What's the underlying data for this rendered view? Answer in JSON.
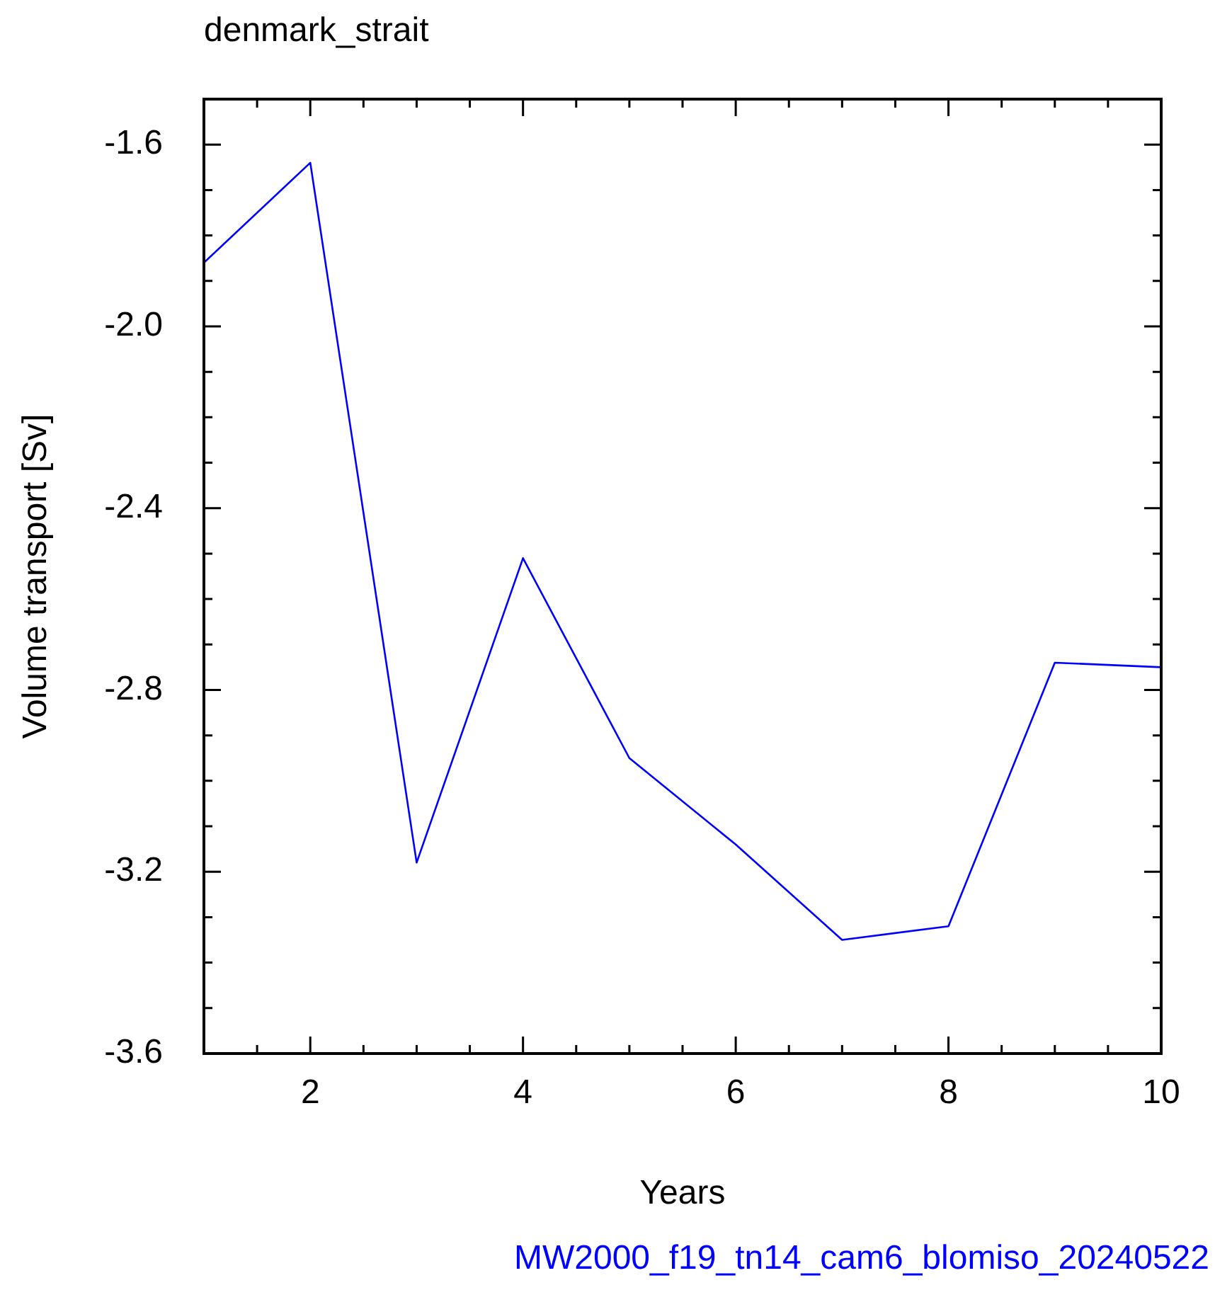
{
  "chart_data": {
    "type": "line",
    "title": "denmark_strait",
    "xlabel": "Years",
    "ylabel": "Volume transport [Sv]",
    "annotations": [
      "MW2000_f19_tn14_cam6_blomiso_20240522"
    ],
    "x": [
      1,
      2,
      3,
      4,
      5,
      6,
      7,
      8,
      9,
      10
    ],
    "series": [
      {
        "color": "#0000ff",
        "values": [
          -1.86,
          -1.64,
          -3.18,
          -2.51,
          -2.95,
          -3.14,
          -3.35,
          -3.32,
          -2.74,
          -2.75
        ]
      }
    ],
    "xlim": [
      1,
      10
    ],
    "xticks": [
      {
        "value": 1,
        "label": null
      },
      {
        "value": 1.5,
        "label": null
      },
      2,
      {
        "value": 2.5,
        "label": null
      },
      {
        "value": 3,
        "label": null
      },
      {
        "value": 3.5,
        "label": null
      },
      4,
      {
        "value": 4.5,
        "label": null
      },
      {
        "value": 5,
        "label": null
      },
      {
        "value": 5.5,
        "label": null
      },
      6,
      {
        "value": 6.5,
        "label": null
      },
      {
        "value": 7,
        "label": null
      },
      {
        "value": 7.5,
        "label": null
      },
      8,
      {
        "value": 8.5,
        "label": null
      },
      {
        "value": 9,
        "label": null
      },
      {
        "value": 9.5,
        "label": null
      },
      10
    ],
    "ylim": [
      -3.6,
      -1.5
    ],
    "yticks": [
      {
        "value": -3.6,
        "label": "-3.6"
      },
      {
        "value": -3.5,
        "label": null
      },
      {
        "value": -3.4,
        "label": null
      },
      {
        "value": -3.3,
        "label": null
      },
      {
        "value": -3.2,
        "label": "-3.2"
      },
      {
        "value": -3.1,
        "label": null
      },
      {
        "value": -3.0,
        "label": null
      },
      {
        "value": -2.9,
        "label": null
      },
      {
        "value": -2.8,
        "label": "-2.8"
      },
      {
        "value": -2.7,
        "label": null
      },
      {
        "value": -2.6,
        "label": null
      },
      {
        "value": -2.5,
        "label": null
      },
      {
        "value": -2.4,
        "label": "-2.4"
      },
      {
        "value": -2.3,
        "label": null
      },
      {
        "value": -2.2,
        "label": null
      },
      {
        "value": -2.1,
        "label": null
      },
      {
        "value": -2.0,
        "label": "-2.0"
      },
      {
        "value": -1.9,
        "label": null
      },
      {
        "value": -1.8,
        "label": null
      },
      {
        "value": -1.7,
        "label": null
      },
      {
        "value": -1.6,
        "label": "-1.6"
      },
      {
        "value": -1.5,
        "label": null
      }
    ],
    "grid": false,
    "legend": false,
    "marker": "none",
    "line_style": "solid"
  }
}
